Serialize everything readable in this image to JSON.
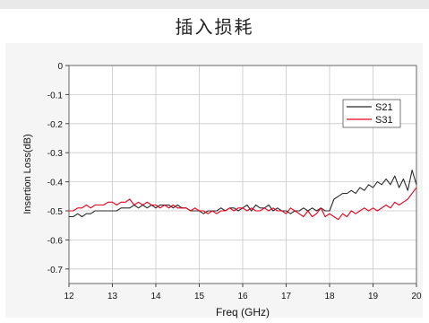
{
  "page": {
    "title": "插入损耗"
  },
  "chart_data": {
    "type": "line",
    "xlabel": "Freq (GHz)",
    "ylabel": "Insertion Loss(dB)",
    "xlim": [
      12,
      20
    ],
    "ylim": [
      -0.75,
      0
    ],
    "x_ticks": [
      "12",
      "13",
      "14",
      "15",
      "16",
      "17",
      "18",
      "19",
      "20"
    ],
    "y_ticks": [
      "0",
      "-0.1",
      "-0.2",
      "-0.3",
      "-0.4",
      "-0.5",
      "-0.6",
      "-0.7"
    ],
    "grid": true,
    "legend_position": "top-right",
    "series": [
      {
        "name": "S21",
        "color": "#2b2b2b",
        "x": [
          12.0,
          12.1,
          12.2,
          12.3,
          12.4,
          12.5,
          12.6,
          12.7,
          12.8,
          12.9,
          13.0,
          13.1,
          13.2,
          13.3,
          13.4,
          13.5,
          13.6,
          13.7,
          13.8,
          13.9,
          14.0,
          14.1,
          14.2,
          14.3,
          14.4,
          14.5,
          14.6,
          14.7,
          14.8,
          14.9,
          15.0,
          15.1,
          15.2,
          15.3,
          15.4,
          15.5,
          15.6,
          15.7,
          15.8,
          15.9,
          16.0,
          16.1,
          16.2,
          16.3,
          16.4,
          16.5,
          16.6,
          16.7,
          16.8,
          16.9,
          17.0,
          17.1,
          17.2,
          17.3,
          17.4,
          17.5,
          17.6,
          17.7,
          17.8,
          17.9,
          18.0,
          18.1,
          18.2,
          18.3,
          18.4,
          18.5,
          18.6,
          18.7,
          18.8,
          18.9,
          19.0,
          19.1,
          19.2,
          19.3,
          19.4,
          19.5,
          19.6,
          19.7,
          19.8,
          19.9,
          20.0
        ],
        "values": [
          -0.52,
          -0.52,
          -0.51,
          -0.52,
          -0.51,
          -0.51,
          -0.5,
          -0.5,
          -0.5,
          -0.5,
          -0.5,
          -0.5,
          -0.49,
          -0.49,
          -0.49,
          -0.48,
          -0.49,
          -0.48,
          -0.49,
          -0.48,
          -0.49,
          -0.48,
          -0.48,
          -0.48,
          -0.49,
          -0.48,
          -0.49,
          -0.49,
          -0.5,
          -0.5,
          -0.5,
          -0.51,
          -0.5,
          -0.5,
          -0.5,
          -0.49,
          -0.5,
          -0.49,
          -0.49,
          -0.5,
          -0.49,
          -0.48,
          -0.5,
          -0.48,
          -0.49,
          -0.49,
          -0.48,
          -0.5,
          -0.49,
          -0.5,
          -0.5,
          -0.51,
          -0.5,
          -0.5,
          -0.49,
          -0.5,
          -0.49,
          -0.5,
          -0.49,
          -0.5,
          -0.5,
          -0.46,
          -0.45,
          -0.44,
          -0.44,
          -0.43,
          -0.44,
          -0.42,
          -0.43,
          -0.41,
          -0.42,
          -0.4,
          -0.41,
          -0.39,
          -0.41,
          -0.38,
          -0.42,
          -0.39,
          -0.43,
          -0.36,
          -0.41
        ]
      },
      {
        "name": "S31",
        "color": "#e8001a",
        "x": [
          12.0,
          12.1,
          12.2,
          12.3,
          12.4,
          12.5,
          12.6,
          12.7,
          12.8,
          12.9,
          13.0,
          13.1,
          13.2,
          13.3,
          13.4,
          13.5,
          13.6,
          13.7,
          13.8,
          13.9,
          14.0,
          14.1,
          14.2,
          14.3,
          14.4,
          14.5,
          14.6,
          14.7,
          14.8,
          14.9,
          15.0,
          15.1,
          15.2,
          15.3,
          15.4,
          15.5,
          15.6,
          15.7,
          15.8,
          15.9,
          16.0,
          16.1,
          16.2,
          16.3,
          16.4,
          16.5,
          16.6,
          16.7,
          16.8,
          16.9,
          17.0,
          17.1,
          17.2,
          17.3,
          17.4,
          17.5,
          17.6,
          17.7,
          17.8,
          17.9,
          18.0,
          18.1,
          18.2,
          18.3,
          18.4,
          18.5,
          18.6,
          18.7,
          18.8,
          18.9,
          19.0,
          19.1,
          19.2,
          19.3,
          19.4,
          19.5,
          19.6,
          19.7,
          19.8,
          19.9,
          20.0
        ],
        "values": [
          -0.5,
          -0.5,
          -0.49,
          -0.49,
          -0.48,
          -0.49,
          -0.48,
          -0.48,
          -0.48,
          -0.47,
          -0.47,
          -0.48,
          -0.47,
          -0.47,
          -0.46,
          -0.48,
          -0.47,
          -0.48,
          -0.47,
          -0.48,
          -0.48,
          -0.49,
          -0.48,
          -0.49,
          -0.48,
          -0.49,
          -0.49,
          -0.49,
          -0.5,
          -0.49,
          -0.5,
          -0.5,
          -0.51,
          -0.5,
          -0.51,
          -0.5,
          -0.5,
          -0.49,
          -0.5,
          -0.49,
          -0.49,
          -0.5,
          -0.49,
          -0.5,
          -0.5,
          -0.49,
          -0.5,
          -0.49,
          -0.5,
          -0.5,
          -0.51,
          -0.49,
          -0.5,
          -0.51,
          -0.52,
          -0.5,
          -0.52,
          -0.51,
          -0.49,
          -0.52,
          -0.51,
          -0.52,
          -0.53,
          -0.51,
          -0.52,
          -0.5,
          -0.51,
          -0.5,
          -0.49,
          -0.5,
          -0.49,
          -0.5,
          -0.49,
          -0.48,
          -0.49,
          -0.47,
          -0.48,
          -0.47,
          -0.46,
          -0.44,
          -0.42
        ]
      }
    ]
  }
}
